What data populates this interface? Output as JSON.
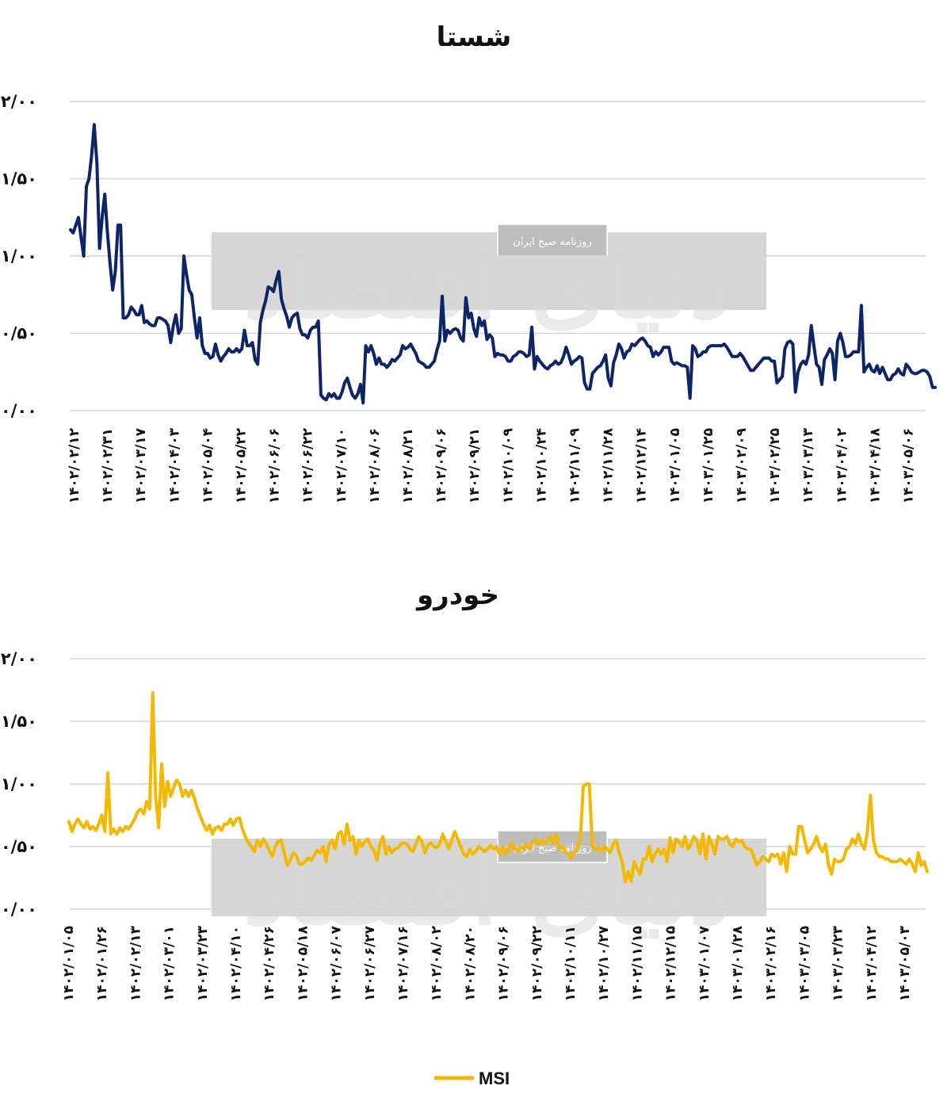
{
  "chart_data": [
    {
      "type": "line",
      "title": "شستا",
      "ylim": [
        0,
        2
      ],
      "y_ticks": [
        "۰/۰۰",
        "۰/۵۰",
        "۱/۰۰",
        "۱/۵۰",
        "۲/۰۰"
      ],
      "y_tick_values": [
        0,
        0.5,
        1,
        1.5,
        2
      ],
      "x_tick_labels": [
        "۱۴۰۲/۰۲/۱۲",
        "۱۴۰۲/۰۲/۳۱",
        "۱۴۰۲/۰۳/۱۷",
        "۱۴۰۲/۰۴/۰۳",
        "۱۴۰۲/۰۵/۰۴",
        "۱۴۰۲/۰۵/۲۲",
        "۱۴۰۲/۰۶/۰۶",
        "۱۴۰۲/۰۶/۲۲",
        "۱۴۰۲/۰۷/۱۰",
        "۱۴۰۲/۰۸/۰۶",
        "۱۴۰۲/۰۸/۲۱",
        "۱۴۰۲/۰۹/۰۶",
        "۱۴۰۲/۰۹/۲۱",
        "۱۴۰۲/۱۰/۰۹",
        "۱۴۰۲/۱۰/۲۴",
        "۱۴۰۲/۱۱/۰۹",
        "۱۴۰۲/۱۱/۲۸",
        "۱۴۰۲/۱۲/۱۴",
        "۱۴۰۳/۰۱/۰۵",
        "۱۴۰۳/۰۱/۲۵",
        "۱۴۰۳/۰۲/۰۹",
        "۱۴۰۳/۰۲/۲۵",
        "۱۴۰۳/۰۳/۱۳",
        "۱۴۰۳/۰۴/۰۲",
        "۱۴۰۳/۰۴/۱۸",
        "۱۴۰۳/۰۵/۰۶"
      ],
      "grid": true,
      "series": [
        {
          "color": "#0d2466",
          "values": [
            1.17,
            1.15,
            1.2,
            1.25,
            1.12,
            1.0,
            1.45,
            1.5,
            1.65,
            1.85,
            1.6,
            1.05,
            1.25,
            1.4,
            1.15,
            0.95,
            0.78,
            0.9,
            1.2,
            1.2,
            0.6,
            0.6,
            0.62,
            0.67,
            0.65,
            0.62,
            0.62,
            0.68,
            0.57,
            0.58,
            0.56,
            0.55,
            0.55,
            0.6,
            0.6,
            0.59,
            0.58,
            0.55,
            0.44,
            0.55,
            0.62,
            0.5,
            0.53,
            1.0,
            0.88,
            0.78,
            0.75,
            0.6,
            0.47,
            0.6,
            0.42,
            0.37,
            0.37,
            0.34,
            0.35,
            0.43,
            0.36,
            0.32,
            0.35,
            0.37,
            0.4,
            0.38,
            0.38,
            0.4,
            0.38,
            0.4,
            0.52,
            0.42,
            0.42,
            0.44,
            0.33,
            0.3,
            0.57,
            0.65,
            0.71,
            0.8,
            0.79,
            0.77,
            0.84,
            0.9,
            0.72,
            0.66,
            0.61,
            0.54,
            0.6,
            0.62,
            0.63,
            0.53,
            0.49,
            0.49,
            0.47,
            0.52,
            0.54,
            0.54,
            0.58,
            0.1,
            0.08,
            0.07,
            0.11,
            0.09,
            0.11,
            0.08,
            0.08,
            0.12,
            0.18,
            0.21,
            0.15,
            0.1,
            0.08,
            0.11,
            0.17,
            0.05,
            0.42,
            0.38,
            0.42,
            0.37,
            0.3,
            0.34,
            0.3,
            0.3,
            0.28,
            0.3,
            0.33,
            0.32,
            0.34,
            0.36,
            0.42,
            0.4,
            0.41,
            0.43,
            0.4,
            0.37,
            0.32,
            0.31,
            0.3,
            0.28,
            0.28,
            0.3,
            0.32,
            0.39,
            0.45,
            0.74,
            0.45,
            0.52,
            0.5,
            0.52,
            0.53,
            0.52,
            0.47,
            0.45,
            0.73,
            0.6,
            0.63,
            0.53,
            0.48,
            0.6,
            0.55,
            0.58,
            0.46,
            0.49,
            0.47,
            0.35,
            0.37,
            0.36,
            0.36,
            0.35,
            0.32,
            0.32,
            0.35,
            0.36,
            0.38,
            0.38,
            0.37,
            0.35,
            0.36,
            0.54,
            0.27,
            0.35,
            0.32,
            0.3,
            0.28,
            0.27,
            0.29,
            0.3,
            0.32,
            0.3,
            0.31,
            0.35,
            0.41,
            0.36,
            0.3,
            0.32,
            0.33,
            0.35,
            0.34,
            0.18,
            0.14,
            0.14,
            0.24,
            0.26,
            0.28,
            0.29,
            0.32,
            0.36,
            0.21,
            0.16,
            0.31,
            0.36,
            0.43,
            0.4,
            0.34,
            0.38,
            0.39,
            0.43,
            0.42,
            0.44,
            0.46,
            0.47,
            0.45,
            0.42,
            0.41,
            0.35,
            0.38,
            0.36,
            0.38,
            0.41,
            0.41,
            0.41,
            0.32,
            0.3,
            0.31,
            0.3,
            0.29,
            0.29,
            0.28,
            0.08,
            0.42,
            0.4,
            0.35,
            0.36,
            0.38,
            0.38,
            0.41,
            0.42,
            0.42,
            0.42,
            0.42,
            0.42,
            0.43,
            0.41,
            0.38,
            0.35,
            0.35,
            0.35,
            0.37,
            0.35,
            0.32,
            0.29,
            0.26,
            0.26,
            0.28,
            0.3,
            0.32,
            0.34,
            0.34,
            0.34,
            0.32,
            0.32,
            0.18,
            0.2,
            0.22,
            0.4,
            0.44,
            0.45,
            0.43,
            0.12,
            0.25,
            0.3,
            0.32,
            0.3,
            0.36,
            0.55,
            0.42,
            0.3,
            0.28,
            0.17,
            0.33,
            0.36,
            0.4,
            0.37,
            0.2,
            0.45,
            0.5,
            0.44,
            0.35,
            0.35,
            0.36,
            0.38,
            0.38,
            0.38,
            0.68,
            0.25,
            0.28,
            0.3,
            0.26,
            0.25,
            0.29,
            0.24,
            0.28,
            0.24,
            0.2,
            0.2,
            0.23,
            0.24,
            0.27,
            0.24,
            0.23,
            0.3,
            0.28,
            0.25,
            0.24,
            0.24,
            0.25,
            0.26,
            0.26,
            0.25,
            0.22,
            0.15,
            0.15
          ]
        }
      ]
    },
    {
      "type": "line",
      "title": "خودرو",
      "ylim": [
        0,
        2
      ],
      "y_ticks": [
        "۰/۰۰",
        "۰/۵۰",
        "۱/۰۰",
        "۱/۵۰",
        "۲/۰۰"
      ],
      "y_tick_values": [
        0,
        0.5,
        1,
        1.5,
        2
      ],
      "x_tick_labels": [
        "۱۴۰۲/۰۱/۰۵",
        "۱۴۰۲/۰۱/۲۶",
        "۱۴۰۲/۰۲/۱۳",
        "۱۴۰۲/۰۳/۰۱",
        "۱۴۰۲/۰۳/۲۳",
        "۱۴۰۲/۰۴/۱۰",
        "۱۴۰۲/۰۴/۲۶",
        "۱۴۰۲/۰۵/۱۸",
        "۱۴۰۲/۰۶/۰۷",
        "۱۴۰۲/۰۶/۲۷",
        "۱۴۰۲/۰۷/۱۶",
        "۱۴۰۲/۰۸/۰۲",
        "۱۴۰۲/۰۸/۲۰",
        "۱۴۰۲/۰۹/۰۶",
        "۱۴۰۲/۰۹/۲۲",
        "۱۴۰۲/۱۰/۱۱",
        "۱۴۰۲/۱۰/۲۷",
        "۱۴۰۲/۱۱/۱۵",
        "۱۴۰۲/۱۲/۱۵",
        "۱۴۰۳/۰۱/۰۷",
        "۱۴۰۳/۰۱/۲۸",
        "۱۴۰۳/۰۲/۱۶",
        "۱۴۰۳/۰۳/۰۵",
        "۱۴۰۳/۰۳/۲۳",
        "۱۴۰۳/۰۴/۱۲",
        "۱۴۰۳/۰۵/۰۳"
      ],
      "grid": true,
      "series": [
        {
          "name": "MSI",
          "color": "#f5b800",
          "values": [
            0.7,
            0.62,
            0.68,
            0.72,
            0.68,
            0.65,
            0.7,
            0.64,
            0.66,
            0.63,
            0.68,
            0.75,
            0.62,
            1.09,
            0.6,
            0.64,
            0.6,
            0.65,
            0.62,
            0.66,
            0.64,
            0.68,
            0.72,
            0.78,
            0.8,
            0.76,
            0.86,
            0.8,
            1.73,
            0.9,
            0.65,
            1.16,
            0.82,
            1.02,
            0.9,
            0.97,
            1.03,
            1.0,
            0.9,
            0.95,
            0.9,
            0.95,
            0.88,
            0.8,
            0.74,
            0.68,
            0.63,
            0.67,
            0.6,
            0.65,
            0.66,
            0.63,
            0.68,
            0.68,
            0.72,
            0.67,
            0.72,
            0.73,
            0.64,
            0.58,
            0.53,
            0.5,
            0.46,
            0.55,
            0.5,
            0.56,
            0.52,
            0.47,
            0.42,
            0.5,
            0.54,
            0.55,
            0.45,
            0.35,
            0.39,
            0.45,
            0.43,
            0.36,
            0.36,
            0.38,
            0.41,
            0.39,
            0.43,
            0.47,
            0.45,
            0.5,
            0.38,
            0.52,
            0.55,
            0.48,
            0.6,
            0.62,
            0.52,
            0.68,
            0.55,
            0.58,
            0.44,
            0.55,
            0.5,
            0.54,
            0.56,
            0.5,
            0.47,
            0.39,
            0.52,
            0.58,
            0.44,
            0.5,
            0.45,
            0.48,
            0.49,
            0.52,
            0.53,
            0.52,
            0.48,
            0.46,
            0.52,
            0.58,
            0.54,
            0.45,
            0.51,
            0.53,
            0.5,
            0.49,
            0.52,
            0.6,
            0.54,
            0.48,
            0.55,
            0.62,
            0.56,
            0.5,
            0.44,
            0.42,
            0.48,
            0.44,
            0.46,
            0.5,
            0.48,
            0.46,
            0.48,
            0.51,
            0.48,
            0.5,
            0.44,
            0.5,
            0.44,
            0.48,
            0.53,
            0.48,
            0.46,
            0.5,
            0.48,
            0.52,
            0.48,
            0.53,
            0.56,
            0.52,
            0.55,
            0.52,
            0.56,
            0.58,
            0.52,
            0.6,
            0.48,
            0.5,
            0.46,
            0.44,
            0.41,
            0.46,
            0.48,
            0.56,
            0.98,
            1.0,
            1.0,
            0.5,
            0.48,
            0.5,
            0.46,
            0.5,
            0.48,
            0.45,
            0.52,
            0.55,
            0.45,
            0.38,
            0.22,
            0.3,
            0.22,
            0.38,
            0.32,
            0.28,
            0.4,
            0.4,
            0.5,
            0.38,
            0.44,
            0.48,
            0.44,
            0.48,
            0.38,
            0.57,
            0.45,
            0.56,
            0.54,
            0.5,
            0.58,
            0.48,
            0.52,
            0.58,
            0.55,
            0.44,
            0.6,
            0.4,
            0.58,
            0.52,
            0.44,
            0.58,
            0.56,
            0.56,
            0.58,
            0.52,
            0.5,
            0.56,
            0.54,
            0.55,
            0.5,
            0.48,
            0.48,
            0.42,
            0.35,
            0.38,
            0.42,
            0.4,
            0.38,
            0.44,
            0.42,
            0.44,
            0.36,
            0.45,
            0.3,
            0.5,
            0.44,
            0.44,
            0.66,
            0.66,
            0.55,
            0.45,
            0.48,
            0.52,
            0.58,
            0.5,
            0.46,
            0.52,
            0.35,
            0.28,
            0.4,
            0.38,
            0.38,
            0.4,
            0.48,
            0.5,
            0.56,
            0.52,
            0.6,
            0.52,
            0.48,
            0.62,
            0.91,
            0.55,
            0.45,
            0.42,
            0.42,
            0.4,
            0.4,
            0.38,
            0.38,
            0.38,
            0.4,
            0.38,
            0.36,
            0.4,
            0.36,
            0.3,
            0.45,
            0.35,
            0.38,
            0.3
          ]
        }
      ],
      "legend": {
        "position": "bottom-center"
      }
    }
  ],
  "watermark": {
    "caption": "روزنامه صبح ایران",
    "big_text": "دنیای اقتصاد"
  }
}
